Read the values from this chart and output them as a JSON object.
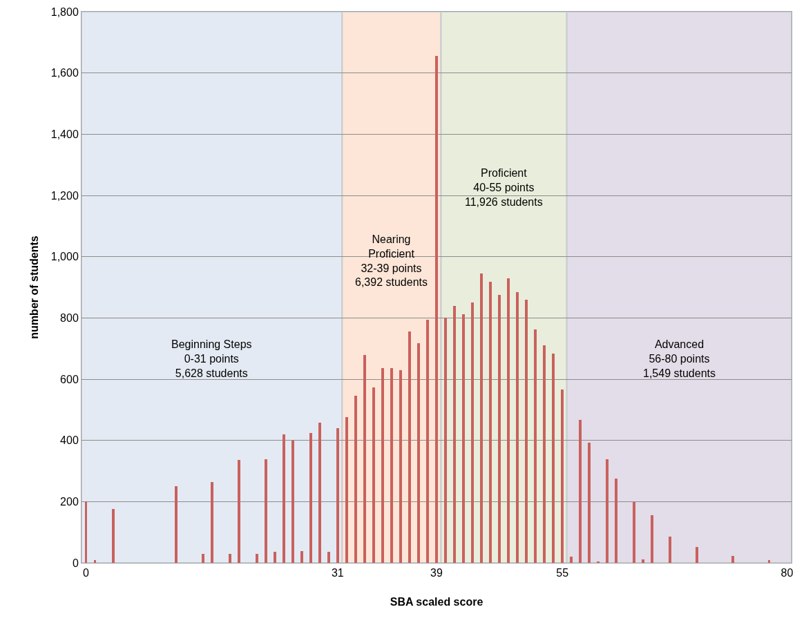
{
  "chart_data": {
    "type": "bar",
    "xlabel": "SBA scaled score",
    "ylabel": "number of students",
    "categories": [
      "0",
      null,
      null,
      null,
      null,
      null,
      null,
      null,
      null,
      null,
      null,
      null,
      null,
      null,
      null,
      null,
      null,
      null,
      null,
      null,
      null,
      null,
      null,
      null,
      null,
      null,
      null,
      null,
      "31",
      null,
      null,
      null,
      null,
      null,
      null,
      null,
      null,
      null,
      null,
      "39",
      null,
      null,
      null,
      null,
      null,
      null,
      null,
      null,
      null,
      null,
      null,
      null,
      null,
      "55",
      null,
      null,
      null,
      null,
      null,
      null,
      null,
      null,
      null,
      null,
      null,
      null,
      null,
      null,
      null,
      null,
      null,
      null,
      null,
      null,
      null,
      null,
      null,
      null,
      "80"
    ],
    "values": [
      200,
      10,
      null,
      175,
      null,
      null,
      null,
      null,
      null,
      null,
      250,
      null,
      null,
      30,
      265,
      null,
      30,
      335,
      null,
      30,
      338,
      35,
      420,
      400,
      38,
      425,
      457,
      35,
      440,
      475,
      545,
      680,
      572,
      637,
      635,
      630,
      755,
      717,
      793,
      1655,
      800,
      840,
      813,
      850,
      945,
      918,
      875,
      930,
      885,
      860,
      763,
      710,
      683,
      567,
      20,
      468,
      392,
      5,
      338,
      275,
      null,
      198,
      12,
      155,
      null,
      85,
      null,
      null,
      52,
      null,
      null,
      null,
      22,
      null,
      null,
      null,
      8,
      null,
      null
    ],
    "color": "#c9615d",
    "ylim": [
      0,
      1800
    ],
    "yticks": [
      {
        "value": 0,
        "label": "0"
      },
      {
        "value": 200,
        "label": "200"
      },
      {
        "value": 400,
        "label": "400"
      },
      {
        "value": 600,
        "label": "600"
      },
      {
        "value": 800,
        "label": "800"
      },
      {
        "value": 1000,
        "label": "1,000"
      },
      {
        "value": 1200,
        "label": "1,200"
      },
      {
        "value": 1400,
        "label": "1,400"
      },
      {
        "value": 1600,
        "label": "1,600"
      },
      {
        "value": 1800,
        "label": "1,800"
      }
    ],
    "grid": "y",
    "bands": [
      {
        "axis": "x",
        "from": "0",
        "to": "31",
        "color": "#e4eaf3",
        "label": "Beginning Steps\n0-31 points\n5,628 students"
      },
      {
        "axis": "x",
        "from": "31",
        "to": "39",
        "color": "#fde6d7",
        "label": "Nearing\nProficient\n32-39 points\n6,392 students"
      },
      {
        "axis": "x",
        "from": "39",
        "to": "55",
        "color": "#e8eedb",
        "label": "Proficient\n40-55 points\n11,926 students"
      },
      {
        "axis": "x",
        "from": "55",
        "to": "80",
        "color": "#e2dde8",
        "label": "Advanced\n56-80 points\n1,549 students"
      }
    ]
  }
}
